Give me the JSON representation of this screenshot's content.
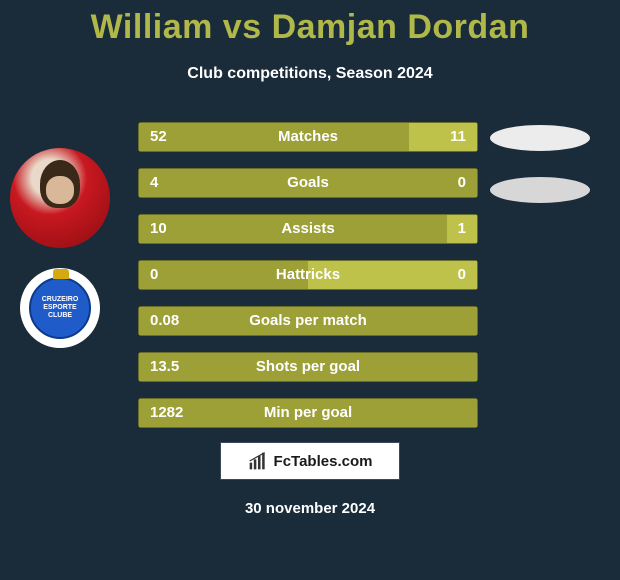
{
  "title": "William vs Damjan Dordan",
  "subtitle": "Club competitions, Season 2024",
  "footer_date": "30 november 2024",
  "logo_text": "FcTables.com",
  "colors": {
    "background": "#1a2b3a",
    "title": "#b1b84a",
    "bar_left": "#9da036",
    "bar_right": "#bfc24a",
    "bar_border": "#6a6e28",
    "text": "#ffffff",
    "ellipse1": "#ececec",
    "ellipse2": "#d7d7d7",
    "club_blue": "#1f5cc9",
    "club_crown": "#d4a912"
  },
  "club_text": "CRUZEIRO\nESPORTE CLUBE",
  "bars": [
    {
      "label": "Matches",
      "left_val": "52",
      "right_val": "11",
      "left_pct": 80,
      "right_pct": 20
    },
    {
      "label": "Goals",
      "left_val": "4",
      "right_val": "0",
      "left_pct": 100,
      "right_pct": 0
    },
    {
      "label": "Assists",
      "left_val": "10",
      "right_val": "1",
      "left_pct": 91,
      "right_pct": 9
    },
    {
      "label": "Hattricks",
      "left_val": "0",
      "right_val": "0",
      "left_pct": 50,
      "right_pct": 50
    },
    {
      "label": "Goals per match",
      "left_val": "0.08",
      "right_val": "",
      "left_pct": 100,
      "right_pct": 0
    },
    {
      "label": "Shots per goal",
      "left_val": "13.5",
      "right_val": "",
      "left_pct": 100,
      "right_pct": 0
    },
    {
      "label": "Min per goal",
      "left_val": "1282",
      "right_val": "",
      "left_pct": 100,
      "right_pct": 0
    }
  ]
}
